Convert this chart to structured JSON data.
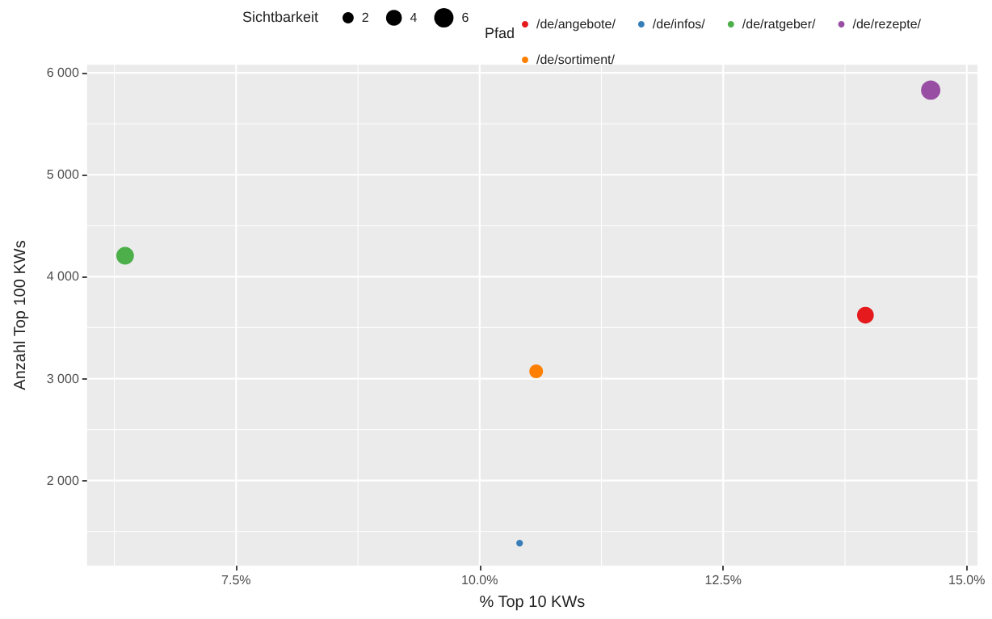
{
  "chart_data": {
    "type": "bubble",
    "xlabel": "% Top 10 KWs",
    "ylabel": "Anzahl Top 100 KWs",
    "legend_title": "Pfad",
    "annotations": [
      "Sichtbarkeit"
    ],
    "xlim": [
      5.97,
      15.11
    ],
    "ylim": [
      1165,
      6080
    ],
    "xticks": [
      {
        "value": 7.5,
        "label": "7.5%"
      },
      {
        "value": 10,
        "label": "10.0%"
      },
      {
        "value": 12.5,
        "label": "12.5%"
      },
      {
        "value": 15,
        "label": "15.0%"
      }
    ],
    "yticks": [
      {
        "value": 2000,
        "label": "2 000"
      },
      {
        "value": 3000,
        "label": "3 000"
      },
      {
        "value": 4000,
        "label": "4 000"
      },
      {
        "value": 5000,
        "label": "5 000"
      },
      {
        "value": 6000,
        "label": "6 000"
      }
    ],
    "size_legend": [
      2,
      4,
      6
    ],
    "series": [
      {
        "name": "/de/angebote/",
        "color": "#e41a1c",
        "x": [
          13.96
        ],
        "values": [
          3622
        ],
        "sizes": [
          4.5
        ]
      },
      {
        "name": "/de/infos/",
        "color": "#377eb8",
        "x": [
          10.41
        ],
        "values": [
          1386
        ],
        "sizes": [
          0.7
        ]
      },
      {
        "name": "/de/ratgeber/",
        "color": "#4daf4a",
        "x": [
          6.36
        ],
        "values": [
          4205
        ],
        "sizes": [
          5
        ]
      },
      {
        "name": "/de/rezepte/",
        "color": "#984ea3",
        "x": [
          14.63
        ],
        "values": [
          5830
        ],
        "sizes": [
          6
        ]
      },
      {
        "name": "/de/sortiment/",
        "color": "#ff7f00",
        "x": [
          10.58
        ],
        "values": [
          3071
        ],
        "sizes": [
          3
        ]
      }
    ],
    "grid": true,
    "legend": "top",
    "marker": "circle"
  }
}
